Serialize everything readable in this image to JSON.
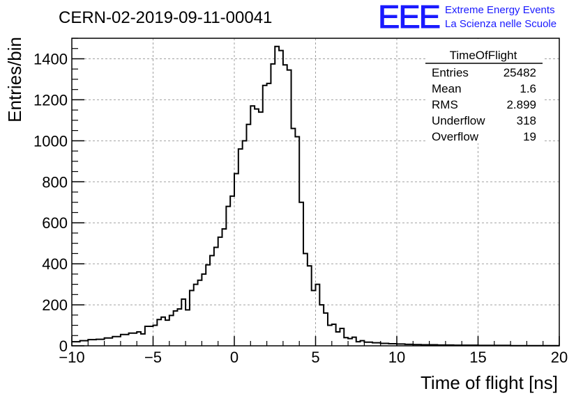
{
  "chart_data": {
    "type": "bar",
    "title": "CERN-02-2019-09-11-00041",
    "xlabel": "Time of flight [ns]",
    "ylabel": "Entries/bin",
    "xlim": [
      -10,
      20
    ],
    "ylim": [
      0,
      1500
    ],
    "grid": true,
    "bin_width": 0.25,
    "x_ticks": [
      -10,
      -5,
      0,
      5,
      10,
      15,
      20
    ],
    "y_ticks": [
      0,
      200,
      400,
      600,
      800,
      1000,
      1200,
      1400
    ],
    "x_tick_labels": [
      "−10",
      "−5",
      "0",
      "5",
      "10",
      "15",
      "20"
    ],
    "y_tick_labels": [
      "0",
      "200",
      "400",
      "600",
      "800",
      "1000",
      "1200",
      "1400"
    ],
    "bins": [
      [
        -10.0,
        20
      ],
      [
        -9.5,
        25
      ],
      [
        -9.0,
        30
      ],
      [
        -8.5,
        32
      ],
      [
        -8.0,
        38
      ],
      [
        -7.5,
        45
      ],
      [
        -7.0,
        55
      ],
      [
        -6.5,
        62
      ],
      [
        -6.0,
        68
      ],
      [
        -5.75,
        58
      ],
      [
        -5.5,
        95
      ],
      [
        -5.0,
        100
      ],
      [
        -4.75,
        128
      ],
      [
        -4.5,
        140
      ],
      [
        -4.25,
        125
      ],
      [
        -4.0,
        148
      ],
      [
        -3.75,
        170
      ],
      [
        -3.5,
        180
      ],
      [
        -3.25,
        228
      ],
      [
        -3.0,
        175
      ],
      [
        -2.75,
        270
      ],
      [
        -2.5,
        300
      ],
      [
        -2.25,
        320
      ],
      [
        -2.0,
        350
      ],
      [
        -1.75,
        395
      ],
      [
        -1.5,
        440
      ],
      [
        -1.25,
        480
      ],
      [
        -1.0,
        530
      ],
      [
        -0.75,
        570
      ],
      [
        -0.5,
        680
      ],
      [
        -0.25,
        730
      ],
      [
        0.0,
        840
      ],
      [
        0.25,
        960
      ],
      [
        0.5,
        1000
      ],
      [
        0.75,
        1080
      ],
      [
        1.0,
        1170
      ],
      [
        1.25,
        1155
      ],
      [
        1.5,
        1140
      ],
      [
        1.75,
        1270
      ],
      [
        2.0,
        1280
      ],
      [
        2.25,
        1375
      ],
      [
        2.5,
        1460
      ],
      [
        2.75,
        1440
      ],
      [
        3.0,
        1370
      ],
      [
        3.25,
        1345
      ],
      [
        3.5,
        1060
      ],
      [
        3.75,
        1020
      ],
      [
        4.0,
        700
      ],
      [
        4.25,
        450
      ],
      [
        4.5,
        390
      ],
      [
        4.75,
        270
      ],
      [
        5.0,
        300
      ],
      [
        5.25,
        200
      ],
      [
        5.5,
        160
      ],
      [
        5.75,
        100
      ],
      [
        6.0,
        105
      ],
      [
        6.25,
        68
      ],
      [
        6.5,
        85
      ],
      [
        6.75,
        40
      ],
      [
        7.0,
        35
      ],
      [
        7.25,
        42
      ],
      [
        7.5,
        20
      ],
      [
        7.75,
        25
      ],
      [
        8.0,
        18
      ],
      [
        8.5,
        15
      ],
      [
        9.0,
        12
      ],
      [
        9.5,
        10
      ],
      [
        10.0,
        9
      ],
      [
        10.5,
        7
      ],
      [
        11.0,
        6
      ],
      [
        11.5,
        5
      ],
      [
        12.0,
        5
      ],
      [
        12.5,
        4
      ],
      [
        13.0,
        4
      ],
      [
        13.5,
        3
      ],
      [
        14.0,
        3
      ],
      [
        15.0,
        2
      ],
      [
        16.0,
        2
      ],
      [
        17.0,
        1
      ],
      [
        18.0,
        1
      ],
      [
        19.0,
        1
      ],
      [
        20.0,
        1
      ]
    ],
    "stats_box": {
      "name": "TimeOfFlight",
      "rows": [
        {
          "label": "Entries",
          "value": "25482"
        },
        {
          "label": "Mean",
          "value": "1.6"
        },
        {
          "label": "RMS",
          "value": "2.899"
        },
        {
          "label": "Underflow",
          "value": "318"
        },
        {
          "label": "Overflow",
          "value": "19"
        }
      ]
    }
  },
  "logo": {
    "mark": "EEE",
    "line1": "Extreme Energy Events",
    "line2": "La Scienza nelle Scuole",
    "color": "#1a1aff"
  },
  "colors": {
    "grid": "#a0a0a0",
    "histogram": "#000000"
  }
}
